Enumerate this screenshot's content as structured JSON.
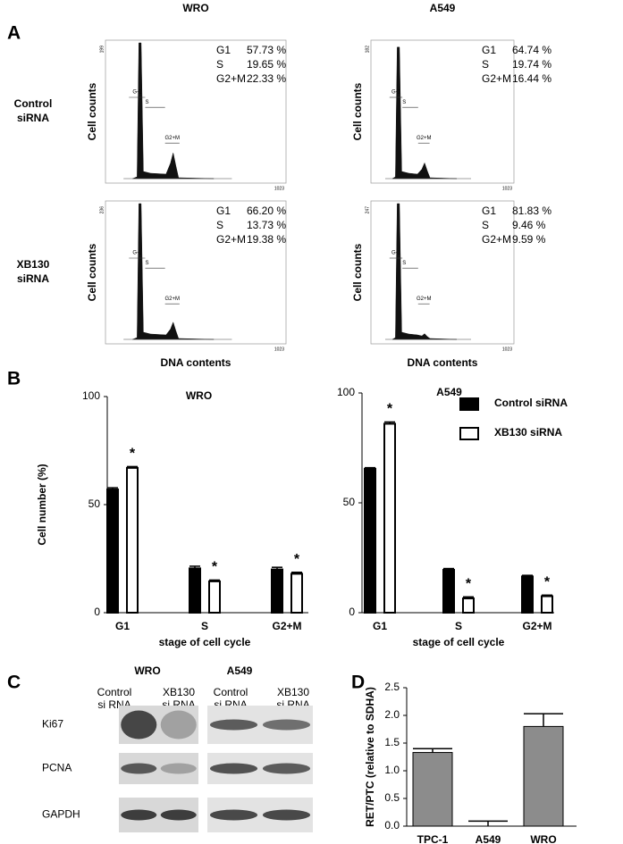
{
  "panel_labels": [
    "A",
    "B",
    "C",
    "D"
  ],
  "flow": {
    "columns": [
      "WRO",
      "A549"
    ],
    "rows": [
      [
        "Control",
        "siRNA"
      ],
      [
        "XB130",
        "siRNA"
      ]
    ],
    "ylabel": "Cell counts",
    "xlabel": "DNA contents",
    "gates": [
      "G-1",
      "S",
      "G2+M"
    ],
    "xmax_label": "1023",
    "plots": [
      [
        {
          "ymax_label": "199",
          "phases": [
            [
              "G1",
              "57.73 %"
            ],
            [
              "S",
              "19.65 %"
            ],
            [
              "G2+M",
              "22.33 %"
            ]
          ]
        },
        {
          "ymax_label": "182",
          "phases": [
            [
              "G1",
              "64.74 %"
            ],
            [
              "S",
              "19.74 %"
            ],
            [
              "G2+M",
              "16.44 %"
            ]
          ]
        }
      ],
      [
        {
          "ymax_label": "236",
          "phases": [
            [
              "G1",
              "66.20 %"
            ],
            [
              "S",
              "13.73 %"
            ],
            [
              "G2+M",
              "19.38 %"
            ]
          ]
        },
        {
          "ymax_label": "247",
          "phases": [
            [
              "G1",
              "81.83 %"
            ],
            [
              "S",
              "9.46 %"
            ],
            [
              "G2+M",
              "9.59 %"
            ]
          ]
        }
      ]
    ]
  },
  "blots": {
    "columns": [
      {
        "title": "WRO",
        "lanes": [
          [
            "Control",
            "si RNA"
          ],
          [
            "XB130",
            "si RNA"
          ]
        ]
      },
      {
        "title": "A549",
        "lanes": [
          [
            "Control",
            "si RNA"
          ],
          [
            "XB130",
            "si RNA"
          ]
        ]
      }
    ],
    "proteins": [
      "Ki67",
      "PCNA",
      "GAPDH"
    ]
  },
  "chart_data": [
    {
      "type": "bar",
      "title": "WRO",
      "ylabel": "Cell number (%)",
      "xlabel": "stage of cell cycle",
      "categories": [
        "G1",
        "S",
        "G2+M"
      ],
      "ylim": [
        0,
        100
      ],
      "yticks": [
        0,
        50,
        100
      ],
      "series": [
        {
          "color": "#000000",
          "values": [
            57,
            20.5,
            20
          ],
          "errors": [
            0.8,
            1,
            1
          ]
        },
        {
          "color": "#ffffff",
          "values": [
            67,
            14.5,
            18
          ],
          "errors": [
            0.6,
            0.6,
            0.7
          ],
          "annotations": [
            "*",
            "*",
            "*"
          ]
        }
      ]
    },
    {
      "type": "bar",
      "title": "A549",
      "xlabel": "stage of cell cycle",
      "categories": [
        "G1",
        "S",
        "G2+M"
      ],
      "ylim": [
        0,
        100
      ],
      "yticks": [
        0,
        50,
        100
      ],
      "legend": "upper right",
      "series": [
        {
          "name": "Control siRNA",
          "color": "#000000",
          "values": [
            65.5,
            19.5,
            16.5
          ],
          "errors": [
            0.5,
            0.6,
            0.5
          ]
        },
        {
          "name": "XB130 siRNA",
          "color": "#ffffff",
          "values": [
            86,
            6.5,
            7.5
          ],
          "errors": [
            0.8,
            0.7,
            0.5
          ],
          "annotations": [
            "*",
            "*",
            "*"
          ]
        }
      ]
    },
    {
      "type": "bar",
      "ylabel": "RET/PTC (relative to SDHA)",
      "categories": [
        "TPC-1",
        "A549",
        "WRO"
      ],
      "ylim": [
        0,
        2.5
      ],
      "yticks": [
        {
          "value": 0,
          "label": "0.0"
        },
        {
          "value": 0.5,
          "label": "0.5"
        },
        {
          "value": 1,
          "label": "1.0"
        },
        {
          "value": 1.5,
          "label": "1.5"
        },
        {
          "value": 2,
          "label": "2.0"
        },
        {
          "value": 2.5,
          "label": "2.5"
        }
      ],
      "series": [
        {
          "color": "#8c8c8c",
          "values": [
            1.33,
            0,
            1.8
          ],
          "errors": [
            0.07,
            0.09,
            0.23
          ]
        }
      ]
    }
  ]
}
